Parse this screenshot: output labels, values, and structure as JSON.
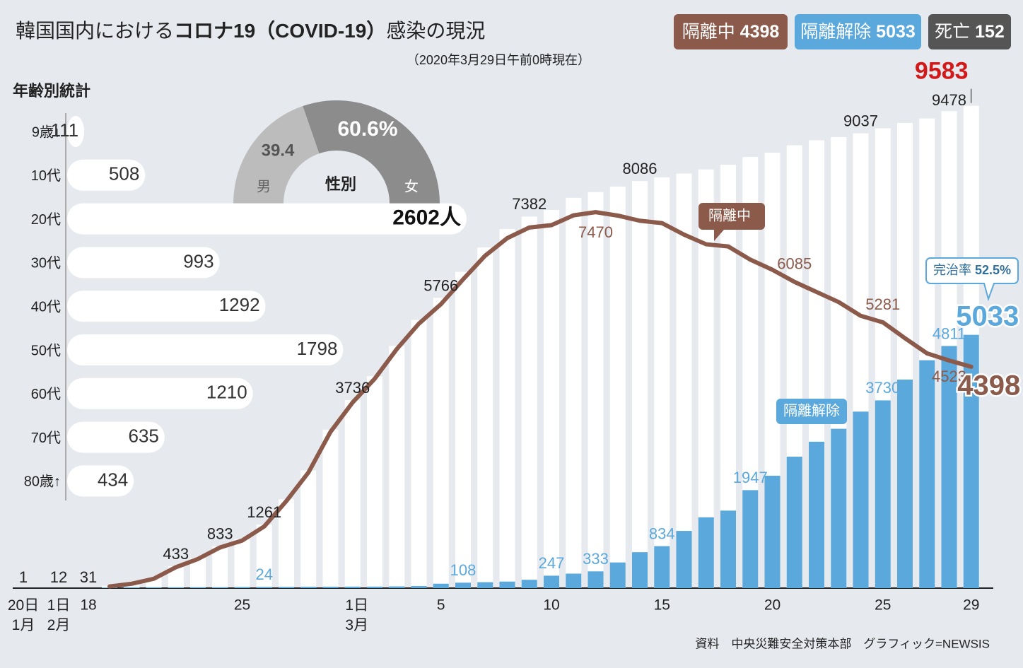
{
  "header": {
    "title": {
      "before": "韓国国内における",
      "bold": "コロナ19（COVID-19）",
      "after": "感染の現況"
    },
    "subtitle": "（2020年3月29日午前0時現在）",
    "badges": [
      {
        "name": "隔離中",
        "value": 4398,
        "color": "#8b5a4a"
      },
      {
        "name": "隔離解除",
        "value": 5033,
        "color": "#5ba8dc"
      },
      {
        "name": "死亡",
        "value": 152,
        "color": "#555555"
      }
    ],
    "source": "資料　中央災難安全対策本部　グラフィック=NEWSIS"
  },
  "chart_data": [
    {
      "type": "bar",
      "categories": [
        "20日\n1月",
        "1日\n2月",
        "18",
        null,
        null,
        null,
        null,
        null,
        null,
        "25",
        null,
        null,
        null,
        null,
        "1日\n3月",
        null,
        null,
        null,
        "5",
        null,
        null,
        null,
        null,
        "10",
        null,
        null,
        null,
        null,
        "15",
        null,
        null,
        null,
        null,
        "20",
        null,
        null,
        null,
        null,
        "25",
        null,
        null,
        null,
        "29"
      ],
      "ylim": [
        0,
        10000
      ],
      "series": [
        {
          "color": "#ffffff",
          "values": [
            1,
            12,
            31,
            46,
            104,
            204,
            433,
            602,
            833,
            977,
            1261,
            1766,
            2337,
            3150,
            3736,
            4212,
            4812,
            5328,
            5766,
            6284,
            6767,
            7134,
            7382,
            7513,
            7755,
            7869,
            7979,
            8086,
            8162,
            8236,
            8320,
            8413,
            8565,
            8652,
            8799,
            8897,
            8961,
            9037,
            9137,
            9241,
            9332,
            9478,
            9583
          ],
          "value_labels": [
            "1",
            "12",
            "31",
            null,
            null,
            null,
            "433",
            null,
            "833",
            null,
            "1261",
            null,
            null,
            null,
            "3736",
            null,
            null,
            null,
            "5766",
            null,
            null,
            null,
            "7382",
            null,
            null,
            null,
            null,
            "8086",
            null,
            null,
            null,
            null,
            null,
            null,
            null,
            null,
            null,
            "9037",
            null,
            null,
            null,
            "9478",
            "9583"
          ]
        },
        {
          "name": "隔離解除",
          "type": "bar",
          "color": "#5ba8dc",
          "values": [
            null,
            null,
            null,
            12,
            16,
            16,
            16,
            18,
            18,
            22,
            24,
            24,
            27,
            28,
            30,
            30,
            34,
            41,
            88,
            108,
            118,
            130,
            166,
            247,
            288,
            333,
            510,
            714,
            834,
            1137,
            1407,
            1540,
            1947,
            2233,
            2612,
            2909,
            3166,
            3507,
            3730,
            4144,
            4528,
            4811,
            5033
          ],
          "value_labels": [
            null,
            null,
            null,
            null,
            null,
            null,
            null,
            null,
            null,
            null,
            "24",
            null,
            null,
            null,
            null,
            null,
            null,
            null,
            null,
            "108",
            null,
            null,
            null,
            "247",
            null,
            "333",
            null,
            null,
            "834",
            null,
            null,
            null,
            "1947",
            null,
            null,
            null,
            null,
            null,
            "3730",
            null,
            null,
            "4811",
            "5033"
          ]
        },
        {
          "name": "隔離中",
          "type": "line",
          "color": "#8b5a4a",
          "values": [
            null,
            null,
            null,
            34,
            87,
            186,
            415,
            579,
            808,
            945,
            1225,
            1729,
            2297,
            3105,
            3689,
            4160,
            4750,
            5255,
            5643,
            6134,
            6605,
            6954,
            7165,
            7212,
            7407,
            7470,
            7402,
            7300,
            7253,
            7024,
            6832,
            6789,
            6527,
            6325,
            6085,
            5884,
            5684,
            5410,
            5281,
            4966,
            4665,
            4523,
            4398
          ],
          "value_labels": [
            null,
            null,
            null,
            null,
            null,
            null,
            null,
            null,
            null,
            null,
            null,
            null,
            null,
            null,
            null,
            null,
            null,
            null,
            null,
            null,
            null,
            null,
            null,
            null,
            null,
            "7470",
            null,
            null,
            null,
            null,
            null,
            null,
            null,
            null,
            "6085",
            null,
            null,
            null,
            "5281",
            null,
            null,
            "4523",
            "4398"
          ]
        }
      ],
      "completion_rate": {
        "label": "完治率",
        "value": 52.5,
        "value_label": "52.5%"
      }
    },
    {
      "type": "bar",
      "orientation": "horizontal",
      "title": "年齢別統計",
      "categories": [
        "9歳↓",
        "10代",
        "20代",
        "30代",
        "40代",
        "50代",
        "60代",
        "70代",
        "80歳↑"
      ],
      "values": [
        111,
        508,
        2602,
        993,
        1292,
        1798,
        1210,
        635,
        434
      ],
      "value_labels": [
        "111",
        "508",
        "2602人",
        "993",
        "1292",
        "1798",
        "1210",
        "635",
        "434"
      ],
      "color": "#ffffff"
    },
    {
      "type": "donut",
      "title": "性別",
      "categories": [
        "男",
        "女"
      ],
      "values": [
        39.4,
        60.6
      ],
      "value_labels": [
        "39.4",
        "60.6%"
      ],
      "colors": [
        "#bcbcbc",
        "#8c8c8c"
      ]
    }
  ]
}
